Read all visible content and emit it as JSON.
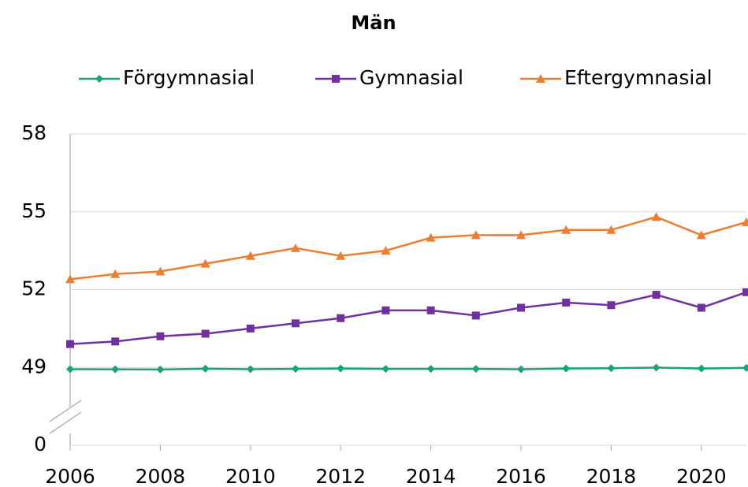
{
  "chart_data": {
    "type": "line",
    "title": "Män",
    "x": [
      2006,
      2007,
      2008,
      2009,
      2010,
      2011,
      2012,
      2013,
      2014,
      2015,
      2016,
      2017,
      2018,
      2019,
      2020,
      2021
    ],
    "xlim": [
      2006,
      2021
    ],
    "xticks": [
      2006,
      2008,
      2010,
      2012,
      2014,
      2016,
      2018,
      2020
    ],
    "ylim": [
      0,
      58
    ],
    "yticks": [
      0,
      49,
      52,
      55,
      58
    ],
    "axis_break": true,
    "grid": true,
    "legend": "top",
    "series": [
      {
        "name": "Förgymnasial",
        "color": "#1aa37a",
        "marker": "diamond",
        "values": [
          47.9,
          47.8,
          47.7,
          48.2,
          47.9,
          48.1,
          48.3,
          48.1,
          48.1,
          48.1,
          47.8,
          48.3,
          48.5,
          48.9,
          48.3,
          48.7
        ]
      },
      {
        "name": "Gymnasial",
        "color": "#7030a0",
        "marker": "square",
        "values": [
          49.9,
          50.0,
          50.2,
          50.3,
          50.5,
          50.7,
          50.9,
          51.2,
          51.2,
          51.0,
          51.3,
          51.5,
          51.4,
          51.8,
          51.3,
          51.9
        ]
      },
      {
        "name": "Eftergymnasial",
        "color": "#ed7d31",
        "marker": "triangle",
        "values": [
          52.4,
          52.6,
          52.7,
          53.0,
          53.3,
          53.6,
          53.3,
          53.5,
          54.0,
          54.1,
          54.1,
          54.3,
          54.3,
          54.8,
          54.1,
          54.6
        ]
      }
    ]
  }
}
